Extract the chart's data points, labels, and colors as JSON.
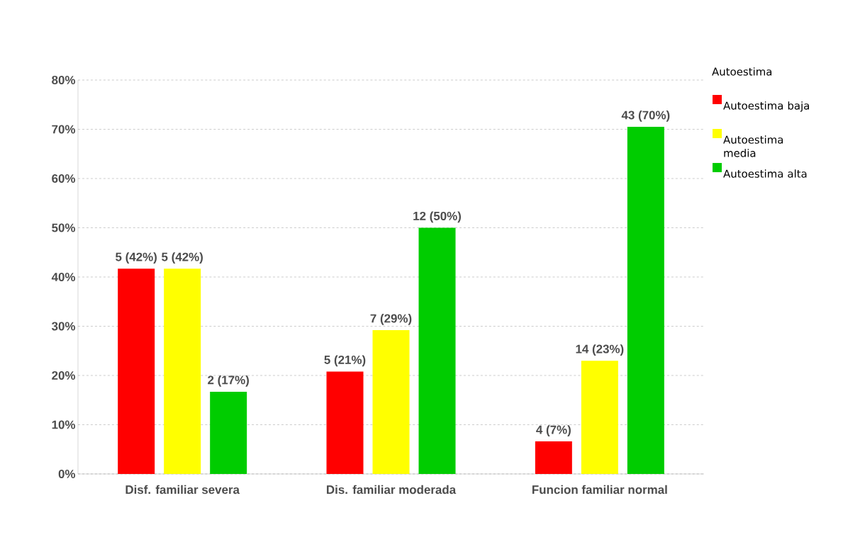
{
  "chart_data": {
    "type": "bar",
    "categories": [
      "Disf. familiar severa",
      "Dis. familiar moderada",
      "Funcion familiar normal"
    ],
    "legend_title": "Autoestima",
    "series": [
      {
        "name": "Autoestima baja",
        "color": "#ff0000",
        "values": [
          41.7,
          20.8,
          6.6
        ],
        "value_labels": [
          "5 (42%)",
          "5 (21%)",
          "4 (7%)"
        ]
      },
      {
        "name": "Autoestima media",
        "color": "#ffff00",
        "values": [
          41.7,
          29.2,
          23.0
        ],
        "value_labels": [
          "5 (42%)",
          "7 (29%)",
          "14 (23%)"
        ]
      },
      {
        "name": "Autoestima alta",
        "color": "#00cc00",
        "values": [
          16.7,
          50.0,
          70.5
        ],
        "value_labels": [
          "2 (17%)",
          "12 (50%)",
          "43 (70%)"
        ]
      }
    ],
    "ylim": [
      0,
      80
    ],
    "yticks": [
      {
        "value": 0,
        "label": "0%"
      },
      {
        "value": 10,
        "label": "10%"
      },
      {
        "value": 20,
        "label": "20%"
      },
      {
        "value": 30,
        "label": "30%"
      },
      {
        "value": 40,
        "label": "40%"
      },
      {
        "value": 50,
        "label": "50%"
      },
      {
        "value": 60,
        "label": "60%"
      },
      {
        "value": 70,
        "label": "70%"
      },
      {
        "value": 80,
        "label": "80%"
      }
    ],
    "grid": "y",
    "legend": "right"
  }
}
